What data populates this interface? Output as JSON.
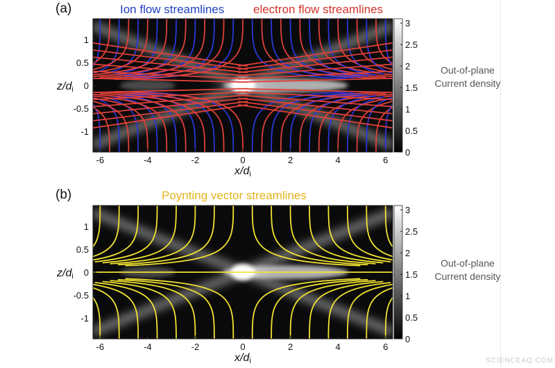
{
  "panel_a": {
    "label": "(a)",
    "title_ion": "Ion flow streamlines",
    "title_electron": "electron flow streamlines",
    "colorbar_label_line1": "Out-of-plane",
    "colorbar_label_line2": "Current density"
  },
  "panel_b": {
    "label": "(b)",
    "title": "Poynting vector streamlines",
    "colorbar_label_line1": "Out-of-plane",
    "colorbar_label_line2": "Current density"
  },
  "axes": {
    "xlabel_main": "x",
    "xlabel_slash": "/",
    "xlabel_d": "d",
    "xlabel_sub": "i",
    "ylabel_main": "z",
    "ylabel_slash": "/",
    "ylabel_d": "d",
    "ylabel_sub": "i"
  },
  "watermark": "SCIENCEAQ.COM",
  "colors": {
    "ion": "#2a36d8",
    "electron": "#e0403a",
    "poynting": "#f2e332",
    "map_dark": "#0a0a0a",
    "map_bright": "#ffffff"
  },
  "chart_data": [
    {
      "type": "heatmap",
      "panel": "(a)",
      "xlim": [
        -6.3,
        6.3
      ],
      "ylim": [
        -1.45,
        1.45
      ],
      "xticks": [
        -6,
        -4,
        -2,
        0,
        2,
        4,
        6
      ],
      "yticks": [
        -1,
        -0.5,
        0,
        0.5,
        1
      ],
      "colorbar_ticks": [
        0,
        0.5,
        1,
        1.5,
        2,
        2.5,
        3
      ],
      "colorbar_range": [
        0,
        3.1
      ],
      "overlays": [
        "Ion flow streamlines",
        "electron flow streamlines"
      ],
      "xlabel": "x/di",
      "ylabel": "z/di"
    },
    {
      "type": "heatmap",
      "panel": "(b)",
      "xlim": [
        -6.3,
        6.3
      ],
      "ylim": [
        -1.45,
        1.45
      ],
      "xticks": [
        -6,
        -4,
        -2,
        0,
        2,
        4,
        6
      ],
      "yticks": [
        -1,
        -0.5,
        0,
        0.5,
        1
      ],
      "colorbar_ticks": [
        0,
        0.5,
        1,
        1.5,
        2,
        2.5,
        3
      ],
      "colorbar_range": [
        0,
        3.1
      ],
      "overlays": [
        "Poynting vector streamlines"
      ],
      "xlabel": "x/di",
      "ylabel": "z/di"
    }
  ]
}
